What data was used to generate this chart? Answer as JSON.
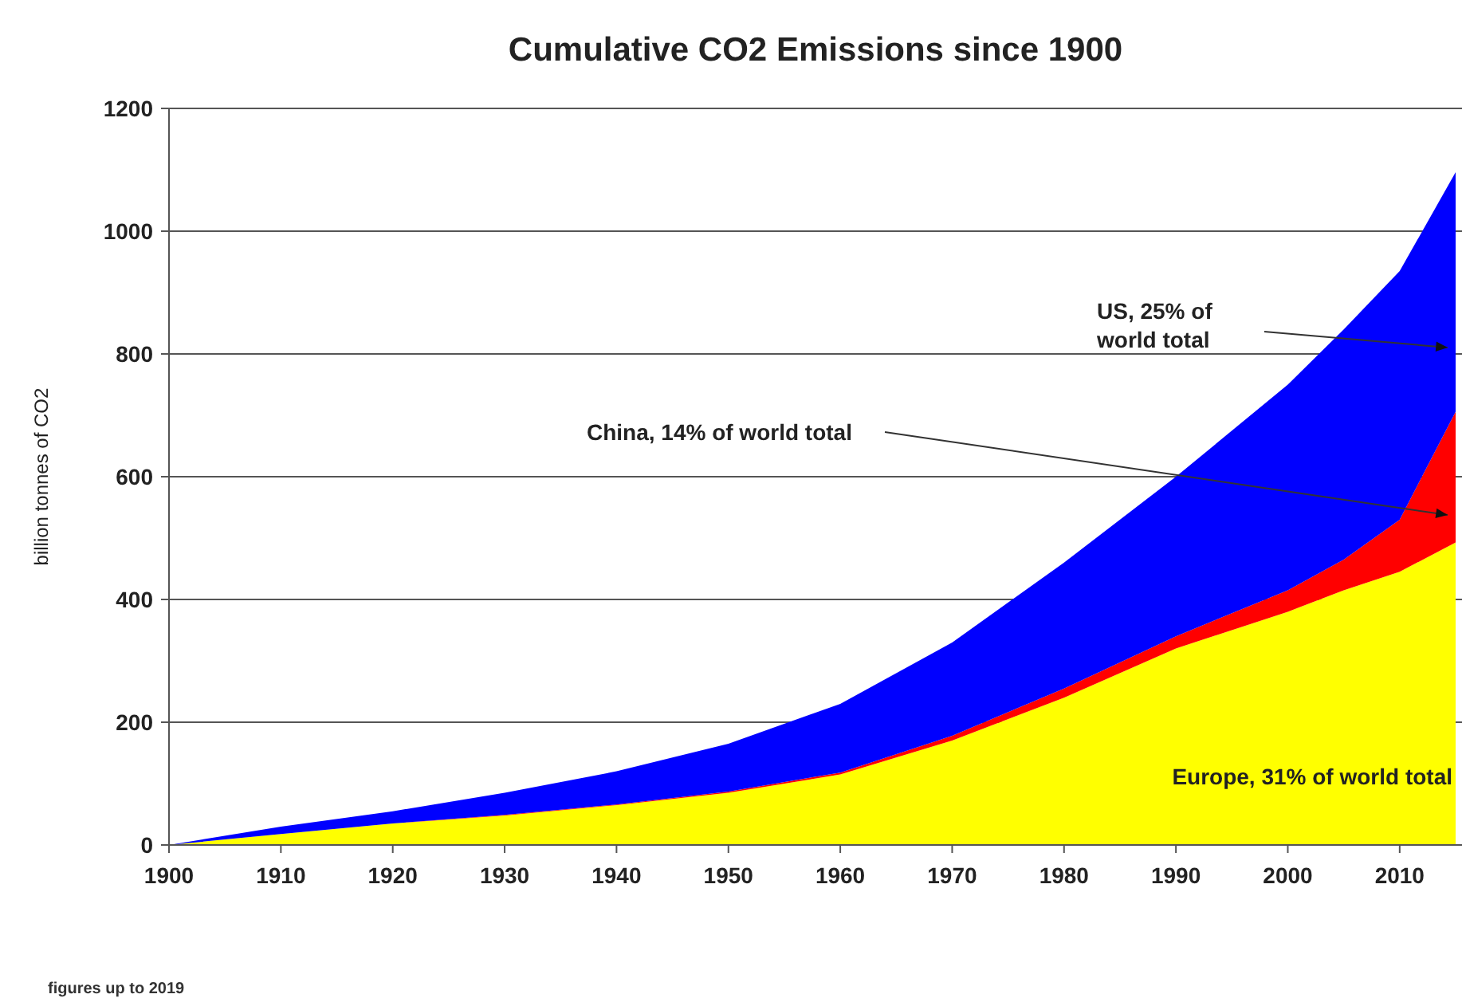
{
  "chart_data": {
    "type": "area",
    "stacked": true,
    "title": "Cumulative CO2 Emissions since 1900",
    "ylabel": "billion tonnes of CO2",
    "x": [
      1900,
      1910,
      1920,
      1930,
      1940,
      1950,
      1960,
      1970,
      1980,
      1990,
      2000,
      2005,
      2010,
      2015
    ],
    "series": [
      {
        "color": "#ffff00",
        "values": [
          0,
          18,
          35,
          48,
          65,
          85,
          115,
          170,
          240,
          320,
          380,
          415,
          445,
          493
        ]
      },
      {
        "color": "#ff0000",
        "values": [
          0,
          0,
          0,
          1,
          1,
          2,
          3,
          8,
          15,
          20,
          35,
          50,
          85,
          213
        ]
      },
      {
        "color": "#0000ff",
        "values": [
          0,
          12,
          20,
          36,
          54,
          78,
          112,
          152,
          205,
          260,
          335,
          375,
          405,
          390
        ]
      }
    ],
    "xlim": [
      1900,
      2015
    ],
    "xticks": [
      1900,
      1910,
      1920,
      1930,
      1940,
      1950,
      1960,
      1970,
      1980,
      1990,
      2000,
      2010
    ],
    "ylim": [
      0,
      1200
    ],
    "yticks": [
      0,
      200,
      400,
      600,
      800,
      1000,
      1200
    ],
    "grid": "y",
    "annotations": [
      "US, 25% of world total",
      "China, 14% of world total",
      "Europe, 31% of world total",
      "figures up to 2019"
    ]
  }
}
